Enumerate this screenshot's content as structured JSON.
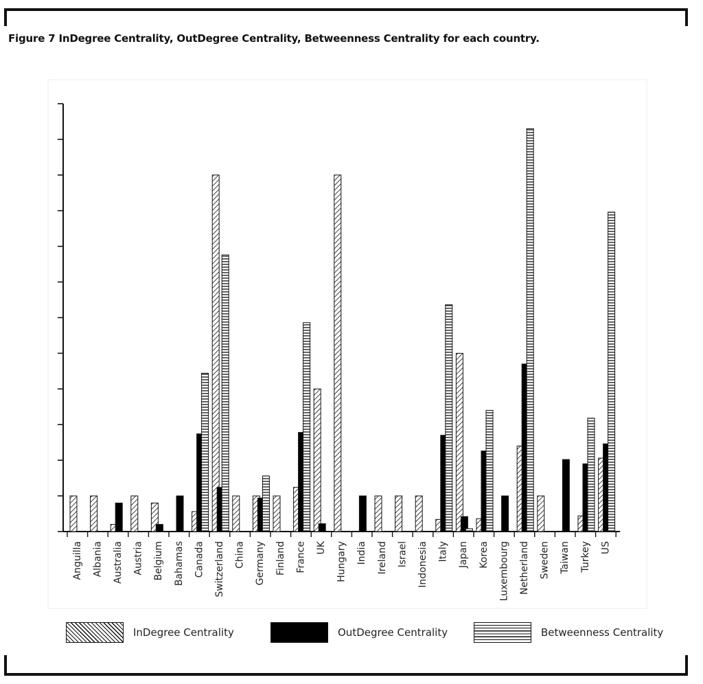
{
  "figure": {
    "title": "Figure 7 InDegree Centrality, OutDegree Centrality, Betweenness Centrality for each country."
  },
  "legend": {
    "indegree_label": "InDegree Centrality",
    "outdegree_label": "OutDegree Centrality",
    "betweenness_label": "Betweenness Centrality"
  },
  "chart_data": {
    "type": "bar",
    "title": "",
    "xlabel": "",
    "ylabel": "",
    "ylim": [
      0,
      600
    ],
    "y_tick_labels_shown": false,
    "grid": false,
    "legend_position": "bottom",
    "categories": [
      "Anguilla",
      "Albania",
      "Australia",
      "Austria",
      "Belgium",
      "Bahamas",
      "Canada",
      "Switzerland",
      "China",
      "Germany",
      "Finland",
      "France",
      "UK",
      "Hungary",
      "India",
      "Ireland",
      "Israel",
      "Indonesia",
      "Italy",
      "Japan",
      "Korea",
      "Luxembourg",
      "Netherland",
      "Sweden",
      "Taiwan",
      "Turkey",
      "US"
    ],
    "series": [
      {
        "name": "InDegree Centrality",
        "pattern": "diagonal-hatch",
        "values": [
          50,
          50,
          10,
          50,
          40,
          0,
          28,
          500,
          50,
          50,
          50,
          62,
          200,
          500,
          0,
          50,
          50,
          50,
          17,
          250,
          18,
          0,
          120,
          50,
          0,
          22,
          103
        ]
      },
      {
        "name": "OutDegree Centrality",
        "pattern": "solid-black",
        "values": [
          0,
          0,
          40,
          0,
          10,
          50,
          137,
          62,
          0,
          47,
          0,
          139,
          11,
          0,
          50,
          0,
          0,
          0,
          135,
          21,
          113,
          50,
          235,
          0,
          101,
          95,
          123
        ]
      },
      {
        "name": "Betweenness Centrality",
        "pattern": "horizontal-lines",
        "values": [
          0,
          0,
          0,
          0,
          0,
          0,
          222,
          388,
          0,
          78,
          0,
          293,
          0,
          0,
          0,
          0,
          0,
          0,
          318,
          4,
          170,
          0,
          565,
          0,
          0,
          159,
          448
        ]
      }
    ]
  }
}
